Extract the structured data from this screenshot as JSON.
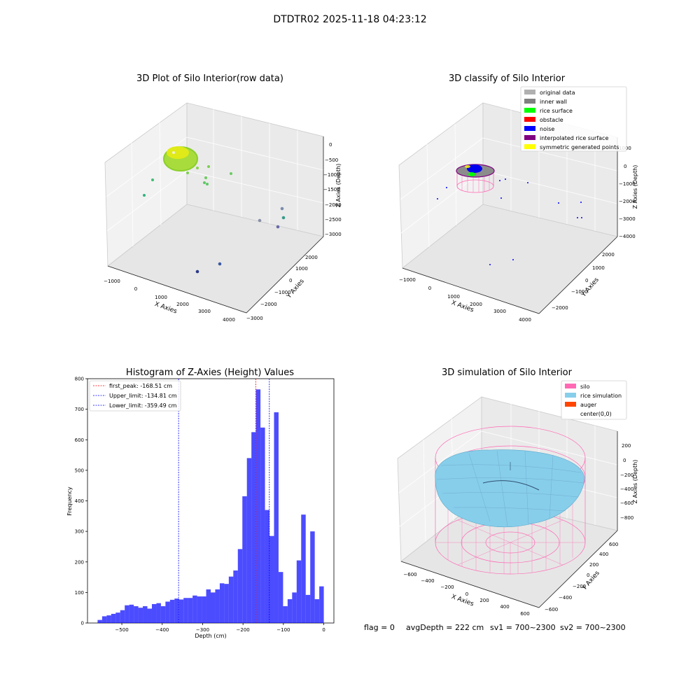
{
  "figure_title": "DTDTR02 2025-11-18 04:23:12",
  "footer": {
    "flag": "flag = 0",
    "avg_depth": "avgDepth = 222 cm",
    "sv1": "sv1 = 700~2300",
    "sv2": "sv2 = 700~2300"
  },
  "chart_data": [
    {
      "type": "scatter",
      "projection": "3d",
      "title": "3D Plot of Silo Interior(row data)",
      "xlabel": "X Axies",
      "ylabel": "Y Axies",
      "zlabel": "Z Axies (Depth)",
      "xticks": [
        "−1000",
        "0",
        "1000",
        "2000",
        "3000",
        "4000"
      ],
      "yticks": [
        "−3000",
        "−2000",
        "−1000",
        "0",
        "1000",
        "2000"
      ],
      "zticks": [
        "0",
        "−500",
        "−1000",
        "−1500",
        "−2000",
        "−2500",
        "−3000"
      ],
      "colormap": "viridis"
    },
    {
      "type": "scatter",
      "projection": "3d",
      "title": "3D classify of Silo Interior",
      "xlabel": "X Axies",
      "ylabel": "Y Axies",
      "zlabel": "Z Axies (Depth)",
      "xticks": [
        "−1000",
        "0",
        "1000",
        "2000",
        "3000",
        "4000"
      ],
      "yticks": [
        "−2000",
        "−1000",
        "0",
        "1000",
        "2000"
      ],
      "zticks": [
        "1000",
        "0",
        "−1000",
        "−2000",
        "−3000",
        "−4000"
      ],
      "legend": [
        {
          "label": "original data",
          "color": "#b0b0b0"
        },
        {
          "label": "inner wall",
          "color": "#808080"
        },
        {
          "label": "rice surface",
          "color": "#00ff00"
        },
        {
          "label": "obstacle",
          "color": "#ff0000"
        },
        {
          "label": "noise",
          "color": "#0000ff"
        },
        {
          "label": "interpolated rice surface",
          "color": "#800080"
        },
        {
          "label": "symmetric generated points",
          "color": "#ffff00"
        }
      ],
      "legend_position": "top-right"
    },
    {
      "type": "bar",
      "title": "Histogram of Z-Axies (Height) Values",
      "xlabel": "Depth (cm)",
      "ylabel": "Frequency",
      "xlim": [
        -585,
        25
      ],
      "ylim": [
        0,
        800
      ],
      "xticks": [
        "−500",
        "−400",
        "−300",
        "−200",
        "−100",
        "0"
      ],
      "yticks": [
        "0",
        "100",
        "200",
        "300",
        "400",
        "500",
        "600",
        "700",
        "800"
      ],
      "bin_width": 11.2,
      "bin_start": -560,
      "values": [
        10,
        22,
        25,
        30,
        34,
        42,
        58,
        60,
        55,
        50,
        55,
        47,
        62,
        65,
        55,
        70,
        76,
        80,
        77,
        82,
        82,
        90,
        87,
        87,
        110,
        100,
        110,
        130,
        128,
        152,
        172,
        242,
        415,
        540,
        625,
        765,
        640,
        370,
        285,
        690,
        167,
        55,
        78,
        100,
        205,
        355,
        92,
        300,
        78,
        120
      ],
      "bar_color": "#0000ff",
      "reference_lines": [
        {
          "label": "first_peak: -168.51 cm",
          "x": -168.51,
          "color": "#ff0000"
        },
        {
          "label": "Upper_limit: -134.81 cm",
          "x": -134.81,
          "color": "#0000ff"
        },
        {
          "label": "Lower_limit: -359.49 cm",
          "x": -359.49,
          "color": "#0000ff"
        }
      ],
      "legend_position": "top-left"
    },
    {
      "type": "area",
      "projection": "3d",
      "title": "3D simulation of Silo Interior",
      "xlabel": "X Axies",
      "ylabel": "Y Axies",
      "zlabel": "Z Axies (Depth)",
      "xticks": [
        "−600",
        "−400",
        "−200",
        "0",
        "200",
        "400",
        "600"
      ],
      "yticks": [
        "−600",
        "−400",
        "−200",
        "0",
        "200",
        "400",
        "600"
      ],
      "zticks": [
        "200",
        "0",
        "−200",
        "−400",
        "−600",
        "−800"
      ],
      "legend": [
        {
          "label": "silo",
          "color": "#ff69b4"
        },
        {
          "label": "rice simulation",
          "color": "#87ceeb"
        },
        {
          "label": "auger",
          "color": "#ff4500"
        },
        {
          "label": "center(0,0)",
          "color": "#ffffff"
        }
      ],
      "legend_position": "top-right"
    }
  ]
}
